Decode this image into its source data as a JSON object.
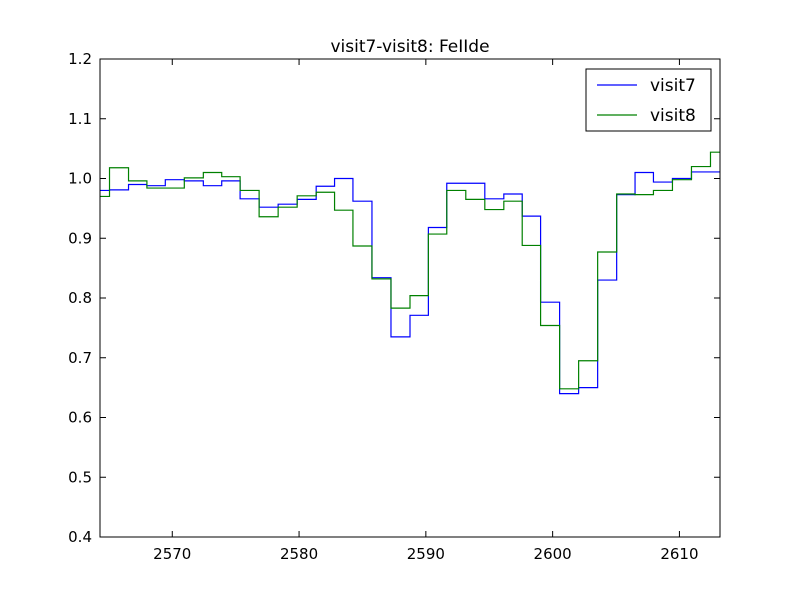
{
  "chart_data": {
    "type": "line",
    "title": "visit7-visit8: FeIIde",
    "xlabel": "",
    "ylabel": "",
    "xlim": [
      2564.3,
      2613.2
    ],
    "ylim": [
      0.4,
      1.2
    ],
    "xticks": [
      2570,
      2580,
      2590,
      2600,
      2610
    ],
    "yticks": [
      0.4,
      0.5,
      0.6,
      0.7,
      0.8,
      0.9,
      1.0,
      1.1,
      1.2
    ],
    "xtick_labels": [
      "2570",
      "2580",
      "2590",
      "2600",
      "2610"
    ],
    "ytick_labels": [
      "0.4",
      "0.5",
      "0.6",
      "0.7",
      "0.8",
      "0.9",
      "1.0",
      "1.1",
      "1.2"
    ],
    "drawstyle": "steps-mid",
    "grid": false,
    "legend_position": "top-right",
    "x": [
      2564.3,
      2565.8,
      2567.3,
      2568.7,
      2570.2,
      2571.7,
      2573.2,
      2574.6,
      2576.1,
      2577.6,
      2579.1,
      2580.6,
      2582.1,
      2583.5,
      2585.0,
      2586.5,
      2588.0,
      2589.5,
      2590.9,
      2592.4,
      2593.9,
      2595.4,
      2596.9,
      2598.3,
      2599.8,
      2601.3,
      2602.8,
      2604.3,
      2605.8,
      2607.2,
      2608.7,
      2610.2,
      2611.7,
      2613.2
    ],
    "series": [
      {
        "name": "visit7",
        "color": "#0000ff",
        "values": [
          0.98,
          0.981,
          0.99,
          0.988,
          0.998,
          0.996,
          0.988,
          0.996,
          0.966,
          0.952,
          0.957,
          0.965,
          0.987,
          1.0,
          0.962,
          0.834,
          0.735,
          0.771,
          0.918,
          0.992,
          0.992,
          0.966,
          0.974,
          0.937,
          0.793,
          0.64,
          0.65,
          0.83,
          0.973,
          1.01,
          0.994,
          1.0,
          1.011,
          1.011
        ]
      },
      {
        "name": "visit8",
        "color": "#008000",
        "values": [
          0.97,
          1.018,
          0.996,
          0.984,
          0.984,
          1.001,
          1.01,
          1.003,
          0.98,
          0.936,
          0.952,
          0.971,
          0.977,
          0.947,
          0.887,
          0.832,
          0.783,
          0.804,
          0.907,
          0.98,
          0.965,
          0.948,
          0.962,
          0.888,
          0.754,
          0.648,
          0.695,
          0.877,
          0.974,
          0.973,
          0.98,
          0.998,
          1.02,
          1.044
        ]
      }
    ]
  }
}
